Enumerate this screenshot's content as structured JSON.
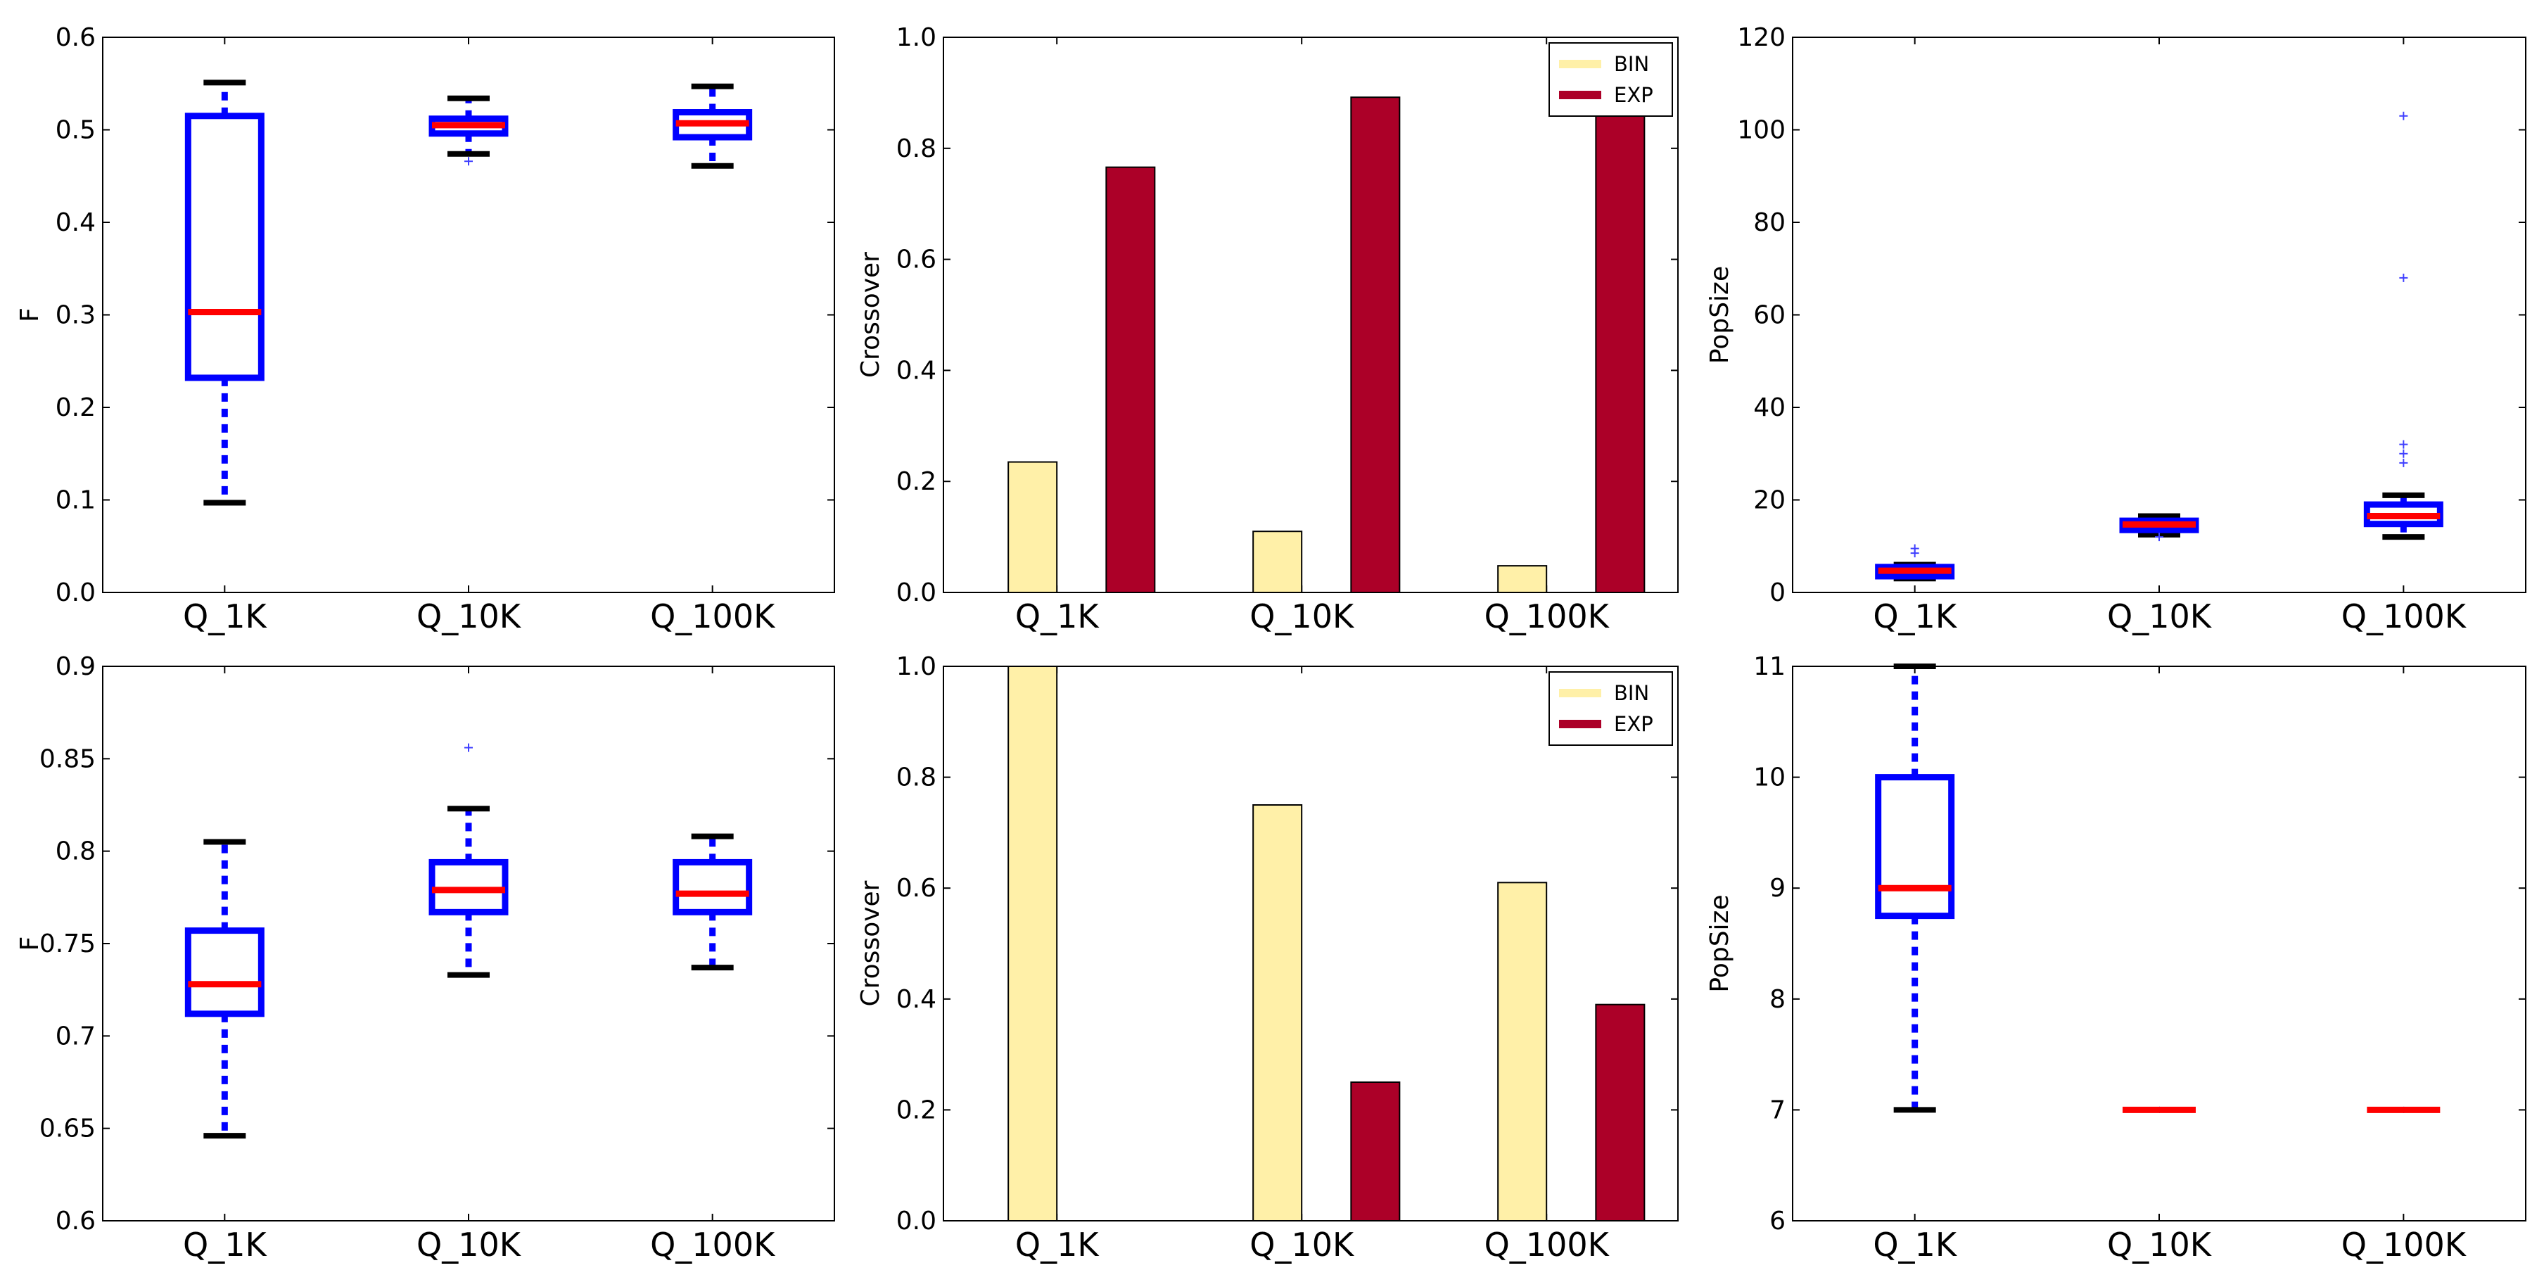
{
  "colors": {
    "box": "#0000ff",
    "median": "#ff0000",
    "whisker_cap": "#000000",
    "flier": "#4040ff",
    "bin": "#fff0a8",
    "exp": "#ac0028"
  },
  "chart_data": [
    {
      "id": "top-left",
      "type": "box",
      "ylabel": "F",
      "ylim": [
        0.0,
        0.6
      ],
      "yticks": [
        0.0,
        0.1,
        0.2,
        0.3,
        0.4,
        0.5,
        0.6
      ],
      "ytick_labels": [
        "0.0",
        "0.1",
        "0.2",
        "0.3",
        "0.4",
        "0.5",
        "0.6"
      ],
      "categories": [
        "Q_1K",
        "Q_10K",
        "Q_100K"
      ],
      "boxes": [
        {
          "whislo": 0.097,
          "q1": 0.232,
          "med": 0.303,
          "q3": 0.515,
          "whishi": 0.551,
          "fliers": []
        },
        {
          "whislo": 0.474,
          "q1": 0.496,
          "med": 0.505,
          "q3": 0.512,
          "whishi": 0.534,
          "fliers": [
            0.466
          ]
        },
        {
          "whislo": 0.461,
          "q1": 0.492,
          "med": 0.507,
          "q3": 0.519,
          "whishi": 0.547,
          "fliers": []
        }
      ]
    },
    {
      "id": "top-middle",
      "type": "bar",
      "ylabel": "Crossover",
      "ylim": [
        0.0,
        1.0
      ],
      "yticks": [
        0.0,
        0.2,
        0.4,
        0.6,
        0.8,
        1.0
      ],
      "ytick_labels": [
        "0.0",
        "0.2",
        "0.4",
        "0.6",
        "0.8",
        "1.0"
      ],
      "categories": [
        "Q_1K",
        "Q_10K",
        "Q_100K"
      ],
      "legend_position": "top-right",
      "series": [
        {
          "name": "BIN",
          "color_key": "bin",
          "values": [
            0.235,
            0.11,
            0.048
          ]
        },
        {
          "name": "EXP",
          "color_key": "exp",
          "values": [
            0.766,
            0.892,
            0.953
          ]
        }
      ]
    },
    {
      "id": "top-right",
      "type": "box",
      "ylabel": "PopSize",
      "ylim": [
        0,
        120
      ],
      "yticks": [
        0,
        20,
        40,
        60,
        80,
        100,
        120
      ],
      "ytick_labels": [
        "0",
        "20",
        "40",
        "60",
        "80",
        "100",
        "120"
      ],
      "categories": [
        "Q_1K",
        "Q_10K",
        "Q_100K"
      ],
      "boxes": [
        {
          "whislo": 3,
          "q1": 3.5,
          "med": 4.7,
          "q3": 5.5,
          "whishi": 6,
          "fliers": [
            8.5,
            9.5
          ]
        },
        {
          "whislo": 12.5,
          "q1": 13.5,
          "med": 14.7,
          "q3": 15.5,
          "whishi": 16.5,
          "fliers": [
            12
          ]
        },
        {
          "whislo": 12,
          "q1": 14.8,
          "med": 16.5,
          "q3": 19,
          "whishi": 21,
          "fliers": [
            28,
            30,
            32,
            68,
            103
          ]
        }
      ]
    },
    {
      "id": "bottom-left",
      "type": "box",
      "ylabel": "F",
      "ylim": [
        0.6,
        0.9
      ],
      "yticks": [
        0.6,
        0.65,
        0.7,
        0.75,
        0.8,
        0.85,
        0.9
      ],
      "ytick_labels": [
        "0.6",
        "0.65",
        "0.7",
        "0.75",
        "0.8",
        "0.85",
        "0.9"
      ],
      "categories": [
        "Q_1K",
        "Q_10K",
        "Q_100K"
      ],
      "boxes": [
        {
          "whislo": 0.646,
          "q1": 0.712,
          "med": 0.728,
          "q3": 0.757,
          "whishi": 0.805,
          "fliers": []
        },
        {
          "whislo": 0.733,
          "q1": 0.767,
          "med": 0.779,
          "q3": 0.794,
          "whishi": 0.823,
          "fliers": [
            0.856
          ]
        },
        {
          "whislo": 0.737,
          "q1": 0.767,
          "med": 0.777,
          "q3": 0.794,
          "whishi": 0.808,
          "fliers": []
        }
      ]
    },
    {
      "id": "bottom-middle",
      "type": "bar",
      "ylabel": "Crossover",
      "ylim": [
        0.0,
        1.0
      ],
      "yticks": [
        0.0,
        0.2,
        0.4,
        0.6,
        0.8,
        1.0
      ],
      "ytick_labels": [
        "0.0",
        "0.2",
        "0.4",
        "0.6",
        "0.8",
        "1.0"
      ],
      "categories": [
        "Q_1K",
        "Q_10K",
        "Q_100K"
      ],
      "legend_position": "top-right",
      "series": [
        {
          "name": "BIN",
          "color_key": "bin",
          "values": [
            1.0,
            0.75,
            0.61
          ]
        },
        {
          "name": "EXP",
          "color_key": "exp",
          "values": [
            0.0,
            0.25,
            0.39
          ]
        }
      ]
    },
    {
      "id": "bottom-right",
      "type": "box",
      "ylabel": "PopSize",
      "ylim": [
        6,
        11
      ],
      "yticks": [
        6,
        7,
        8,
        9,
        10,
        11
      ],
      "ytick_labels": [
        "6",
        "7",
        "8",
        "9",
        "10",
        "11"
      ],
      "categories": [
        "Q_1K",
        "Q_10K",
        "Q_100K"
      ],
      "boxes": [
        {
          "whislo": 7,
          "q1": 8.75,
          "med": 9,
          "q3": 10,
          "whishi": 11,
          "fliers": []
        },
        {
          "whislo": 7,
          "q1": 7,
          "med": 7,
          "q3": 7,
          "whishi": 7,
          "fliers": []
        },
        {
          "whislo": 7,
          "q1": 7,
          "med": 7,
          "q3": 7,
          "whishi": 7,
          "fliers": []
        }
      ]
    }
  ]
}
